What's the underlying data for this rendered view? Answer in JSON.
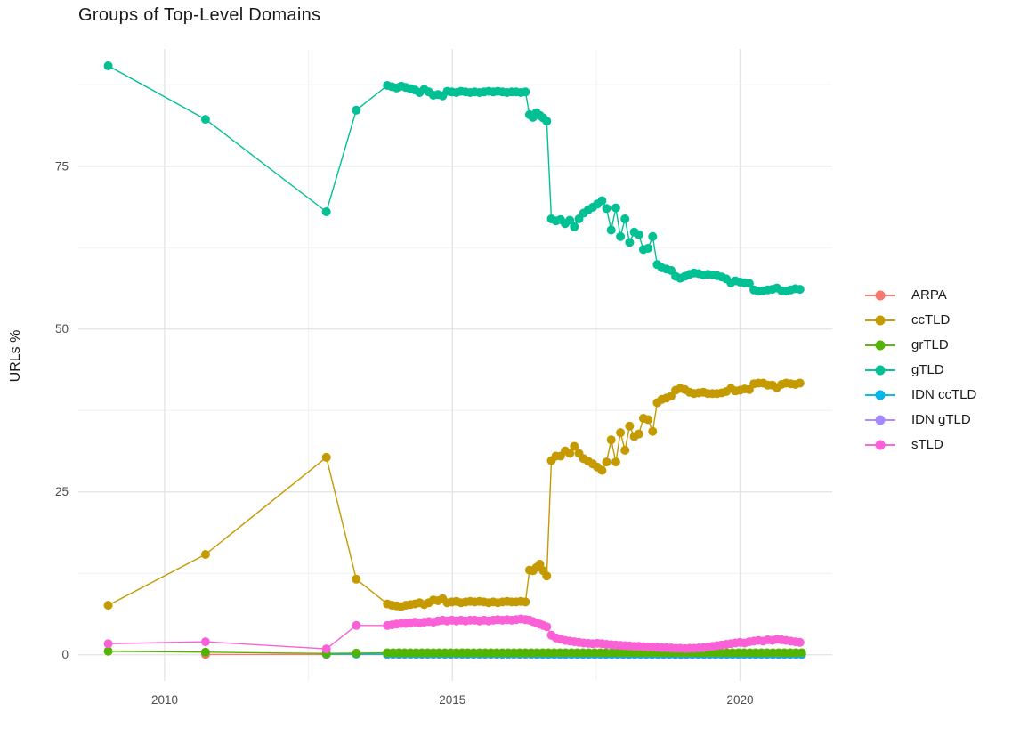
{
  "title": "Groups of Top-Level Domains",
  "legend": {
    "items": [
      {
        "id": "arpa",
        "label": "ARPA",
        "color": "#F8766D"
      },
      {
        "id": "cctld",
        "label": "ccTLD",
        "color": "#C49A00"
      },
      {
        "id": "grtld",
        "label": "grTLD",
        "color": "#53B400"
      },
      {
        "id": "gtld",
        "label": "gTLD",
        "color": "#00C094"
      },
      {
        "id": "idn-cctld",
        "label": "IDN ccTLD",
        "color": "#00B6EB"
      },
      {
        "id": "idn-gtld",
        "label": "IDN gTLD",
        "color": "#A58AFF"
      },
      {
        "id": "stld",
        "label": "sTLD",
        "color": "#FB61D7"
      }
    ]
  },
  "chart_data": {
    "type": "scatter",
    "title": "Groups of Top-Level Domains",
    "xlabel": "",
    "ylabel": "URLs %",
    "xlim": [
      2008.5,
      2021.6
    ],
    "ylim": [
      -4,
      93
    ],
    "x_ticks": [
      2010,
      2015,
      2020
    ],
    "x_minor_ticks": [
      2012.5,
      2017.5
    ],
    "y_ticks": [
      0,
      25,
      50,
      75
    ],
    "y_minor_ticks": [
      12.5,
      37.5,
      62.5,
      87.5
    ],
    "grid": true,
    "legend_position": "right",
    "colors": {
      "grid_major": "#e3e3e3",
      "grid_minor": "#f0f0f0",
      "tick_text": "#4d4d4d",
      "axis_title": "#1a1a1a"
    },
    "series": [
      {
        "name": "ARPA",
        "id": "arpa",
        "color": "#F8766D",
        "segments": [
          {
            "points": [
              [
                2010.71,
                0.05
              ],
              [
                2012.81,
                0.05
              ]
            ]
          },
          {
            "x0": 2013.87,
            "dx": 0.1,
            "n": 73,
            "const": 0.05
          }
        ]
      },
      {
        "name": "IDN gTLD",
        "id": "idn-gtld",
        "color": "#A58AFF",
        "segments": [
          {
            "x0": 2016.47,
            "dx": 0.1,
            "n": 47,
            "const": 0.0
          }
        ]
      },
      {
        "name": "IDN ccTLD",
        "id": "idn-cctld",
        "color": "#00B6EB",
        "segments": [
          {
            "points": [
              [
                2012.81,
                0.1
              ],
              [
                2013.33,
                0.1
              ]
            ]
          },
          {
            "x0": 2013.87,
            "dx": 0.1,
            "n": 73,
            "const": 0.1
          }
        ]
      },
      {
        "name": "grTLD",
        "id": "grtld",
        "color": "#53B400",
        "segments": [
          {
            "points": [
              [
                2009.02,
                0.55
              ],
              [
                2010.71,
                0.4
              ],
              [
                2012.81,
                0.2
              ],
              [
                2013.33,
                0.25
              ]
            ]
          },
          {
            "x0": 2013.87,
            "dx": 0.1,
            "n": 73,
            "const": 0.3
          }
        ]
      },
      {
        "name": "sTLD",
        "id": "stld",
        "color": "#FB61D7",
        "segments": [
          {
            "points": [
              [
                2009.02,
                1.7
              ],
              [
                2010.71,
                2.0
              ],
              [
                2012.81,
                0.9
              ],
              [
                2013.33,
                4.5
              ]
            ]
          },
          {
            "x0": 2013.87,
            "dx": 0.08,
            "values": [
              4.5,
              4.6,
              4.7,
              4.8,
              4.8,
              4.9,
              5.0,
              4.9,
              5.0,
              5.1,
              5.0,
              5.2,
              5.3,
              5.2,
              5.3,
              5.2,
              5.3,
              5.2,
              5.3,
              5.3,
              5.2,
              5.3,
              5.2,
              5.3,
              5.4,
              5.3,
              5.4,
              5.3,
              5.4,
              5.5,
              5.4
            ]
          },
          {
            "x0": 2016.34,
            "dx": 0.06,
            "values": [
              5.3,
              5.1,
              4.9,
              4.7,
              4.5,
              4.3
            ]
          },
          {
            "x0": 2016.72,
            "dx": 0.08,
            "values": [
              3.0,
              2.6,
              2.4,
              2.2,
              2.1,
              2.0,
              1.9,
              1.8,
              1.75,
              1.7,
              1.75,
              1.7,
              1.6,
              1.55,
              1.5,
              1.45,
              1.4,
              1.35,
              1.3,
              1.3,
              1.25,
              1.2,
              1.2,
              1.15,
              1.1,
              1.1,
              1.05,
              1.0,
              1.0,
              0.95,
              1.0,
              1.0,
              1.05,
              1.1,
              1.2,
              1.3,
              1.4,
              1.5,
              1.6,
              1.7,
              1.8,
              1.9,
              1.8,
              2.0,
              2.1,
              2.2,
              2.1,
              2.3,
              2.2,
              2.4,
              2.3,
              2.2,
              2.1,
              2.0,
              1.9
            ]
          }
        ]
      },
      {
        "name": "ccTLD",
        "id": "cctld",
        "color": "#C49A00",
        "segments": [
          {
            "points": [
              [
                2009.02,
                7.6
              ],
              [
                2010.71,
                15.4
              ],
              [
                2012.81,
                30.3
              ],
              [
                2013.33,
                11.6
              ]
            ]
          },
          {
            "x0": 2013.87,
            "dx": 0.08,
            "values": [
              7.8,
              7.6,
              7.5,
              7.4,
              7.6,
              7.7,
              7.8,
              8.0,
              7.7,
              8.0,
              8.4,
              8.3,
              8.6,
              8.0,
              8.1,
              8.2,
              8.0,
              8.1,
              8.2,
              8.1,
              8.2,
              8.1,
              8.0,
              8.1,
              8.0,
              8.1,
              8.2,
              8.1,
              8.1,
              8.2,
              8.1
            ]
          },
          {
            "x0": 2016.34,
            "dx": 0.06,
            "values": [
              13.0,
              12.9,
              13.4,
              13.9,
              12.9,
              12.1
            ]
          },
          {
            "x0": 2016.72,
            "dx": 0.08,
            "values": [
              29.8,
              30.5,
              30.5,
              31.3,
              30.9,
              32.0,
              30.9,
              30.1,
              29.7,
              29.3,
              28.8,
              28.3,
              29.6,
              33.0,
              29.6,
              34.1,
              31.4,
              35.1,
              33.5,
              33.9,
              36.3,
              36.1,
              34.3,
              38.7,
              39.2,
              39.4,
              39.7,
              40.6,
              40.9,
              40.7,
              40.3,
              40.1,
              40.2,
              40.3,
              40.1,
              40.1,
              40.1,
              40.2,
              40.4,
              40.9,
              40.5,
              40.6,
              40.8,
              40.7,
              41.6,
              41.7,
              41.7,
              41.4,
              41.4,
              41.0,
              41.5,
              41.7,
              41.6,
              41.5,
              41.7
            ]
          }
        ]
      },
      {
        "name": "gTLD",
        "id": "gtld",
        "color": "#00C094",
        "segments": [
          {
            "points": [
              [
                2009.02,
                90.4
              ],
              [
                2010.71,
                82.2
              ],
              [
                2012.81,
                68.0
              ],
              [
                2013.33,
                83.6
              ]
            ]
          },
          {
            "x0": 2013.87,
            "dx": 0.08,
            "values": [
              87.4,
              87.2,
              87.0,
              87.3,
              87.1,
              86.9,
              86.7,
              86.3,
              86.8,
              86.4,
              85.9,
              86.0,
              85.8,
              86.5,
              86.4,
              86.3,
              86.5,
              86.4,
              86.3,
              86.4,
              86.3,
              86.4,
              86.5,
              86.4,
              86.5,
              86.4,
              86.3,
              86.4,
              86.4,
              86.3,
              86.4
            ]
          },
          {
            "x0": 2016.34,
            "dx": 0.06,
            "values": [
              82.9,
              82.5,
              83.2,
              82.8,
              82.4,
              81.9
            ]
          },
          {
            "x0": 2016.72,
            "dx": 0.08,
            "values": [
              66.9,
              66.6,
              66.8,
              66.2,
              66.7,
              65.7,
              66.9,
              67.8,
              68.3,
              68.7,
              69.2,
              69.7,
              68.5,
              65.2,
              68.6,
              64.2,
              66.9,
              63.3,
              64.9,
              64.5,
              62.2,
              62.4,
              64.2,
              59.9,
              59.4,
              59.2,
              59.0,
              58.1,
              57.8,
              58.1,
              58.4,
              58.6,
              58.5,
              58.3,
              58.4,
              58.3,
              58.2,
              58.0,
              57.7,
              57.1,
              57.4,
              57.2,
              57.1,
              57.0,
              56.0,
              55.8,
              55.9,
              56.0,
              56.1,
              56.3,
              55.9,
              55.8,
              56.0,
              56.2,
              56.1
            ]
          }
        ]
      }
    ]
  }
}
